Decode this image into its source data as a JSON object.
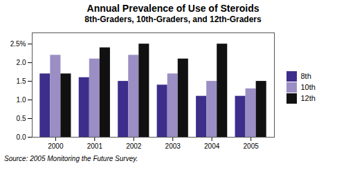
{
  "chart_data": {
    "type": "bar",
    "title": "Annual Prevalence of Use of Steroids",
    "subtitle": "8th-Graders, 10th-Graders, and 12th-Graders",
    "caption": "Source: 2005 Monitoring the Future Survey.",
    "categories": [
      "2000",
      "2001",
      "2002",
      "2003",
      "2004",
      "2005"
    ],
    "series": [
      {
        "name": "8th",
        "color": "#3d2e8c",
        "values": [
          1.7,
          1.6,
          1.5,
          1.4,
          1.1,
          1.1
        ]
      },
      {
        "name": "10th",
        "color": "#9b8ec4",
        "values": [
          2.2,
          2.1,
          2.2,
          1.7,
          1.5,
          1.3
        ]
      },
      {
        "name": "12th",
        "color": "#111111",
        "values": [
          1.7,
          2.4,
          2.5,
          2.1,
          2.5,
          1.5
        ]
      }
    ],
    "ylim": [
      0.0,
      2.8
    ],
    "yticks": [
      {
        "value": 0,
        "label": "0.0"
      },
      0.5,
      {
        "value": 1,
        "label": "1.0"
      },
      1.5,
      {
        "value": 2,
        "label": "2.0"
      },
      {
        "value": 2.5,
        "label": "2.5%"
      }
    ],
    "grid": false,
    "legend": "right"
  }
}
